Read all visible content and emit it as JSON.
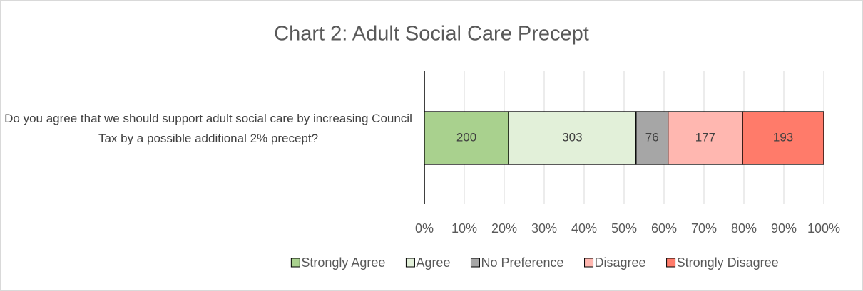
{
  "chart_data": {
    "type": "bar",
    "orientation": "horizontal",
    "stacked": "percent",
    "title": "Chart 2: Adult Social Care Precept",
    "categories": [
      "Do you agree that we should support adult social care by increasing Council Tax by a possible additional 2% precept?"
    ],
    "series": [
      {
        "name": "Strongly Agree",
        "color": "#a9d18e",
        "values": [
          200
        ]
      },
      {
        "name": "Agree",
        "color": "#e2f0d9",
        "values": [
          303
        ]
      },
      {
        "name": "No Preference",
        "color": "#a6a6a6",
        "values": [
          76
        ]
      },
      {
        "name": "Disagree",
        "color": "#ffb7b0",
        "values": [
          177
        ]
      },
      {
        "name": "Strongly Disagree",
        "color": "#ff7b6a",
        "values": [
          193
        ]
      }
    ],
    "xlim": [
      0,
      100
    ],
    "xticks": [
      {
        "value": 0,
        "label": "0%"
      },
      {
        "value": 10,
        "label": "10%"
      },
      {
        "value": 20,
        "label": "20%"
      },
      {
        "value": 30,
        "label": "30%"
      },
      {
        "value": 40,
        "label": "40%"
      },
      {
        "value": 50,
        "label": "50%"
      },
      {
        "value": 60,
        "label": "60%"
      },
      {
        "value": 70,
        "label": "70%"
      },
      {
        "value": 80,
        "label": "80%"
      },
      {
        "value": 90,
        "label": "90%"
      },
      {
        "value": 100,
        "label": "100%"
      }
    ],
    "grid": true,
    "legend": "bottom"
  }
}
